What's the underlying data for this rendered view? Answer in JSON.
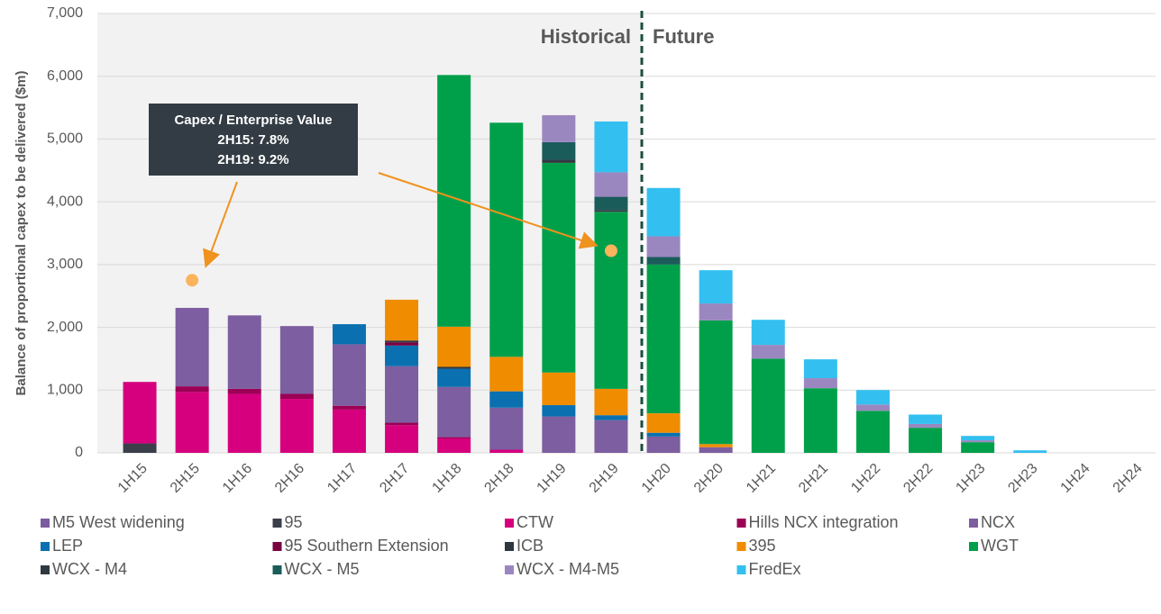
{
  "chart_data": {
    "type": "bar",
    "stacked": true,
    "y_label": "Balance of proportional capex to be delivered ($m)",
    "categories": [
      "1H15",
      "2H15",
      "1H16",
      "2H16",
      "1H17",
      "2H17",
      "1H18",
      "2H18",
      "1H19",
      "2H19",
      "1H20",
      "2H20",
      "1H21",
      "2H21",
      "1H22",
      "2H22",
      "1H23",
      "2H23",
      "1H24",
      "2H24"
    ],
    "ylim": [
      0,
      7000
    ],
    "yticks": [
      0,
      {
        "value": 1000,
        "label": "1,000"
      },
      {
        "value": 2000,
        "label": "2,000"
      },
      {
        "value": 3000,
        "label": "3,000"
      },
      {
        "value": 4000,
        "label": "4,000"
      },
      {
        "value": 5000,
        "label": "5,000"
      },
      {
        "value": 6000,
        "label": "6,000"
      },
      {
        "value": 7000,
        "label": "7,000"
      }
    ],
    "grid": true,
    "period_labels": [
      "Historical",
      "Future"
    ],
    "annotation": [
      "Capex / Enterprise Value",
      "2H15: 7.8%",
      "2H19: 9.2%"
    ],
    "ratio_points": {
      "color": "#fbb45c",
      "points": [
        {
          "category": "2H15",
          "value": 2750
        },
        {
          "category": "2H19",
          "value": 3220
        }
      ]
    },
    "series": [
      {
        "name": "M5 West widening",
        "color": "#7b5c9e",
        "values": [
          0,
          0,
          0,
          0,
          0,
          0,
          0,
          0,
          0,
          0,
          0,
          0,
          0,
          0,
          0,
          0,
          0,
          0,
          0,
          0
        ]
      },
      {
        "name": "95",
        "color": "#3a3f4a",
        "values": [
          150,
          0,
          0,
          0,
          0,
          0,
          0,
          0,
          0,
          0,
          0,
          0,
          0,
          0,
          0,
          0,
          0,
          0,
          0,
          0
        ]
      },
      {
        "name": "CTW",
        "color": "#d6007e",
        "values": [
          980,
          970,
          940,
          860,
          690,
          440,
          230,
          50,
          0,
          0,
          0,
          0,
          0,
          0,
          0,
          0,
          0,
          0,
          0,
          0
        ]
      },
      {
        "name": "Hills NCX integration",
        "color": "#9b0055",
        "values": [
          0,
          90,
          80,
          80,
          60,
          40,
          20,
          0,
          0,
          0,
          0,
          0,
          0,
          0,
          0,
          0,
          0,
          0,
          0,
          0
        ]
      },
      {
        "name": "NCX",
        "color": "#7d5ea0",
        "values": [
          0,
          1250,
          1170,
          1080,
          980,
          900,
          800,
          670,
          580,
          520,
          260,
          90,
          0,
          0,
          0,
          0,
          0,
          0,
          0,
          0
        ]
      },
      {
        "name": "LEP",
        "color": "#0a70b0",
        "values": [
          0,
          0,
          0,
          0,
          320,
          330,
          290,
          260,
          180,
          80,
          60,
          0,
          0,
          0,
          0,
          0,
          0,
          0,
          0,
          0
        ]
      },
      {
        "name": "95 Southern Extension",
        "color": "#7a0040",
        "values": [
          0,
          0,
          0,
          0,
          0,
          50,
          0,
          0,
          0,
          0,
          0,
          0,
          0,
          0,
          0,
          0,
          0,
          0,
          0,
          0
        ]
      },
      {
        "name": "ICB",
        "color": "#2e3640",
        "values": [
          0,
          0,
          0,
          0,
          0,
          30,
          30,
          0,
          0,
          0,
          0,
          0,
          0,
          0,
          0,
          0,
          0,
          0,
          0,
          0
        ]
      },
      {
        "name": "395",
        "color": "#f08c00",
        "values": [
          0,
          0,
          0,
          0,
          0,
          650,
          640,
          550,
          520,
          420,
          310,
          50,
          0,
          0,
          0,
          0,
          0,
          0,
          0,
          0
        ]
      },
      {
        "name": "WGT",
        "color": "#00a04a",
        "values": [
          0,
          0,
          0,
          0,
          0,
          0,
          4010,
          3730,
          3340,
          2820,
          2370,
          1970,
          1500,
          1030,
          670,
          400,
          170,
          0,
          0,
          0
        ]
      },
      {
        "name": "WCX - M4",
        "color": "#2f3a40",
        "values": [
          0,
          0,
          0,
          0,
          0,
          0,
          0,
          0,
          50,
          30,
          0,
          0,
          0,
          0,
          0,
          0,
          0,
          0,
          0,
          0
        ]
      },
      {
        "name": "WCX - M5",
        "color": "#1a5c5a",
        "values": [
          0,
          0,
          0,
          0,
          0,
          0,
          0,
          0,
          280,
          210,
          120,
          0,
          0,
          0,
          0,
          0,
          0,
          0,
          0,
          0
        ]
      },
      {
        "name": "WCX - M4-M5",
        "color": "#9b87c0",
        "values": [
          0,
          0,
          0,
          0,
          0,
          0,
          0,
          0,
          430,
          390,
          330,
          270,
          220,
          160,
          100,
          60,
          30,
          0,
          0,
          0
        ]
      },
      {
        "name": "FredEx",
        "color": "#33c0f0",
        "values": [
          0,
          0,
          0,
          0,
          0,
          0,
          0,
          0,
          0,
          810,
          770,
          530,
          400,
          300,
          230,
          150,
          70,
          40,
          0,
          0
        ]
      }
    ]
  }
}
